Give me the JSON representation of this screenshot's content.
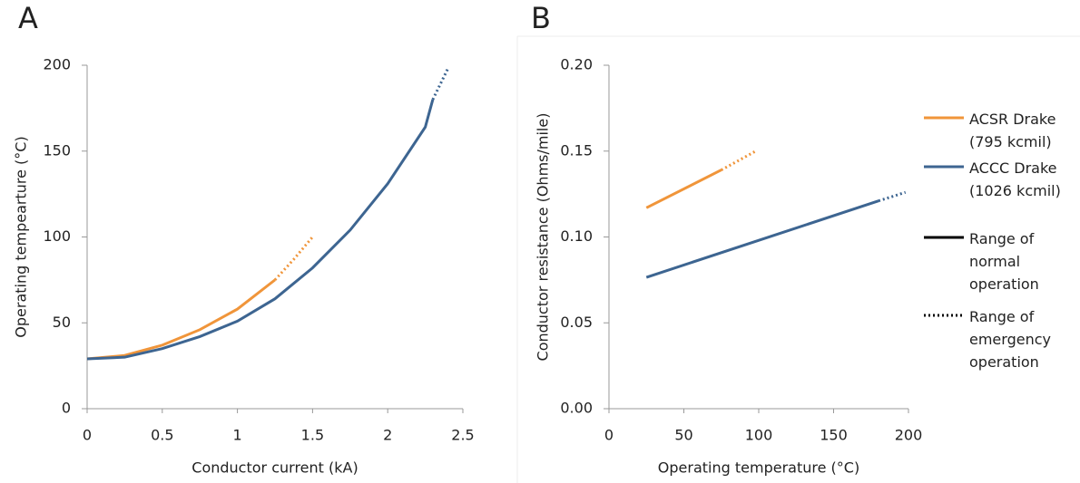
{
  "chart_data": [
    {
      "type": "line",
      "panel_label": "A",
      "x_label": "Conductor current (kA)",
      "y_label": "Operating tempearture (°C)",
      "xlim": [
        0,
        2.5
      ],
      "xticks": [
        0,
        0.5,
        1,
        1.5,
        2,
        2.5
      ],
      "ylim": [
        0,
        200
      ],
      "yticks": [
        0,
        50,
        100,
        150,
        200
      ],
      "series": [
        {
          "color": "#f0953a",
          "style": "solid",
          "x": [
            0,
            0.25,
            0.5,
            0.75,
            1,
            1.25
          ],
          "values": [
            29,
            31,
            37,
            46,
            58,
            75
          ]
        },
        {
          "color": "#f0953a",
          "style": "dotted",
          "x": [
            1.25,
            1.375,
            1.5
          ],
          "values": [
            75,
            87,
            100
          ]
        },
        {
          "color": "#3d6591",
          "style": "solid",
          "x": [
            0,
            0.25,
            0.5,
            0.75,
            1,
            1.25,
            1.5,
            1.75,
            2,
            2.25,
            2.3
          ],
          "values": [
            29,
            30,
            35,
            42,
            51,
            64,
            82,
            104,
            131,
            164,
            180
          ]
        },
        {
          "color": "#3d6591",
          "style": "dotted",
          "x": [
            2.3,
            2.35,
            2.4
          ],
          "values": [
            180,
            189,
            198
          ]
        }
      ]
    },
    {
      "type": "line",
      "panel_label": "B",
      "x_label": "Operating temperature (°C)",
      "y_label": "Conductor resistance (Ohms/mile)",
      "xlim": [
        0,
        200
      ],
      "xticks": [
        0,
        50,
        100,
        150,
        200
      ],
      "ylim": [
        0,
        0.2
      ],
      "yticks": [
        {
          "value": 0,
          "label": "0.00"
        },
        {
          "value": 0.05,
          "label": "0.05"
        },
        {
          "value": 0.1,
          "label": "0.10"
        },
        {
          "value": 0.15,
          "label": "0.15"
        },
        {
          "value": 0.2,
          "label": "0.20"
        }
      ],
      "series": [
        {
          "color": "#f0953a",
          "style": "solid",
          "x": [
            25,
            75
          ],
          "values": [
            0.117,
            0.139
          ]
        },
        {
          "color": "#f0953a",
          "style": "dotted",
          "x": [
            75,
            98
          ],
          "values": [
            0.139,
            0.15
          ]
        },
        {
          "color": "#3d6591",
          "style": "solid",
          "x": [
            25,
            180
          ],
          "values": [
            0.0765,
            0.121
          ]
        },
        {
          "color": "#3d6591",
          "style": "dotted",
          "x": [
            180,
            198
          ],
          "values": [
            0.121,
            0.126
          ]
        }
      ],
      "legend": [
        {
          "name": "ACSR Drake (795 kcmil)",
          "color": "#f0953a",
          "style": "solid"
        },
        {
          "name": "ACCC Drake (1026 kcmil)",
          "color": "#3d6591",
          "style": "solid"
        },
        {
          "name": "Range of normal operation",
          "color": "#000000",
          "style": "solid"
        },
        {
          "name": "Range of emergency operation",
          "color": "#000000",
          "style": "dotted"
        }
      ]
    }
  ]
}
